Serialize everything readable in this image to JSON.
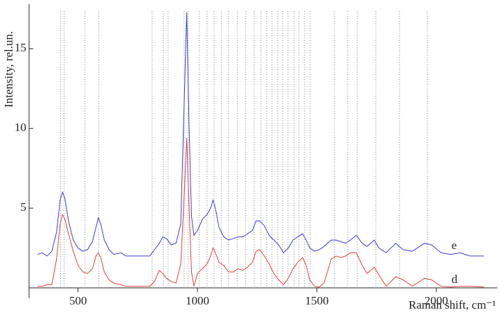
{
  "chart_data": {
    "type": "line",
    "x_label": "Raman shift, cm⁻¹",
    "y_label": "Intensity, rel.un.",
    "xlim": [
      295,
      2255
    ],
    "ylim": [
      0,
      17.8
    ],
    "xticks": [
      500,
      1000,
      1500,
      2000
    ],
    "yticks": [
      5,
      10,
      15
    ],
    "peak_lines": [
      427,
      442,
      529,
      587,
      810,
      857,
      877,
      944,
      961,
      1008,
      1040,
      1069,
      1100,
      1130,
      1167,
      1202,
      1237,
      1266,
      1289,
      1312,
      1336,
      1356,
      1379,
      1405,
      1425,
      1449,
      1472,
      1573,
      1629,
      1669,
      1747,
      1846,
      1962
    ],
    "x": [
      330,
      350,
      370,
      390,
      410,
      425,
      435,
      445,
      460,
      480,
      500,
      520,
      540,
      560,
      575,
      585,
      595,
      610,
      630,
      650,
      680,
      700,
      750,
      800,
      820,
      840,
      855,
      870,
      890,
      910,
      930,
      945,
      955,
      965,
      975,
      985,
      1000,
      1020,
      1040,
      1055,
      1065,
      1075,
      1090,
      1110,
      1130,
      1150,
      1170,
      1190,
      1210,
      1230,
      1245,
      1260,
      1280,
      1300,
      1320,
      1340,
      1360,
      1380,
      1400,
      1420,
      1440,
      1455,
      1470,
      1490,
      1510,
      1530,
      1560,
      1580,
      1600,
      1620,
      1640,
      1665,
      1690,
      1710,
      1740,
      1760,
      1790,
      1830,
      1860,
      1900,
      1950,
      1980,
      2020,
      2060,
      2100,
      2140,
      2200
    ],
    "series": [
      {
        "name": "e",
        "color": "#3b3bd8",
        "values": [
          2.1,
          2.2,
          2.0,
          2.3,
          3.5,
          5.5,
          6.0,
          5.6,
          4.2,
          3.0,
          2.5,
          2.3,
          2.4,
          2.9,
          3.8,
          4.4,
          4.0,
          3.0,
          2.4,
          2.1,
          2.2,
          2.0,
          2.0,
          2.0,
          2.4,
          2.8,
          3.2,
          3.1,
          2.7,
          2.8,
          4.0,
          12,
          17.3,
          10,
          4.5,
          3.3,
          3.6,
          4.3,
          4.6,
          5.0,
          5.5,
          5.0,
          3.8,
          3.2,
          3.0,
          3.1,
          3.2,
          3.2,
          3.4,
          3.6,
          4.2,
          4.2,
          3.9,
          3.3,
          3.0,
          2.7,
          2.2,
          2.5,
          3.0,
          3.2,
          3.4,
          3.0,
          2.5,
          2.3,
          2.4,
          2.6,
          3.0,
          3.0,
          2.9,
          2.8,
          3.0,
          3.3,
          2.8,
          2.6,
          3.0,
          2.5,
          2.2,
          2.8,
          2.4,
          2.3,
          2.8,
          2.7,
          2.2,
          2.1,
          2.2,
          2.0,
          2.0
        ]
      },
      {
        "name": "d",
        "color": "#e0403a",
        "values": [
          0.1,
          0.1,
          0.2,
          0.2,
          1.8,
          4.0,
          4.6,
          4.3,
          3.4,
          2.3,
          1.4,
          1.0,
          0.9,
          1.2,
          2.0,
          2.2,
          1.9,
          1.0,
          0.5,
          0.3,
          0.2,
          0.1,
          0.1,
          0.1,
          0.4,
          1.1,
          0.9,
          0.6,
          0.4,
          0.3,
          1.5,
          6.0,
          9.4,
          5.0,
          1.0,
          0.1,
          0.9,
          1.2,
          1.5,
          2.0,
          2.5,
          2.2,
          1.6,
          1.4,
          1.0,
          1.0,
          1.2,
          1.1,
          1.3,
          1.6,
          2.3,
          2.4,
          2.0,
          1.5,
          0.9,
          0.5,
          0.2,
          0.6,
          1.2,
          1.6,
          1.9,
          1.4,
          0.5,
          0.1,
          0.05,
          0.3,
          1.8,
          2.0,
          1.9,
          2.0,
          2.2,
          2.2,
          1.4,
          0.9,
          1.3,
          0.8,
          0.1,
          0.7,
          0.5,
          0.1,
          0.6,
          0.5,
          0.1,
          0.05,
          0.1,
          0.1,
          0.05
        ]
      }
    ]
  }
}
